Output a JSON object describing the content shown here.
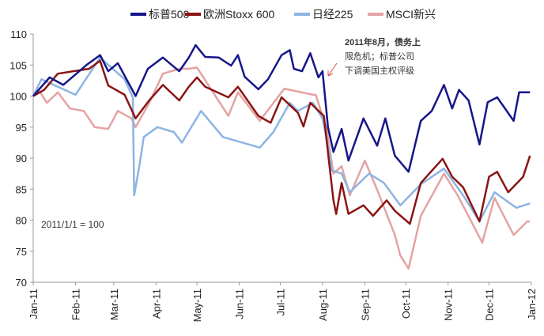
{
  "chart_data": {
    "type": "line",
    "title": "",
    "xlabel": "",
    "ylabel": "",
    "ylim": [
      70,
      110
    ],
    "yticks": [
      70,
      75,
      80,
      85,
      90,
      95,
      100,
      105,
      110
    ],
    "xlim": [
      "2011-01-01",
      "2012-01-01"
    ],
    "xtick_labels": [
      "Jan-11",
      "Feb-11",
      "Mar-11",
      "Apr-11",
      "May-11",
      "Jun-11",
      "Jul-11",
      "Aug-11",
      "Sep-11",
      "Oct-11",
      "Nov-11",
      "Dec-11",
      "Jan-12"
    ],
    "xtick_dates": [
      "2011-01-01",
      "2011-02-01",
      "2011-03-01",
      "2011-04-01",
      "2011-05-01",
      "2011-06-01",
      "2011-07-01",
      "2011-08-01",
      "2011-09-01",
      "2011-10-01",
      "2011-11-01",
      "2011-12-01",
      "2012-01-01"
    ],
    "grid": false,
    "legend_position": "top",
    "base_note": "2011/1/1 = 100",
    "annotation": {
      "lines": [
        "2011年8月，债务上",
        "限危机；标普公司",
        "下调美国主权评级"
      ],
      "arrow_color": "#e05050"
    },
    "series": [
      {
        "name": "标普500",
        "color": "#16168a",
        "points": [
          [
            "2011-01-01",
            100
          ],
          [
            "2011-01-13",
            103
          ],
          [
            "2011-01-23",
            101.8
          ],
          [
            "2011-02-09",
            105
          ],
          [
            "2011-02-19",
            106.6
          ],
          [
            "2011-02-25",
            104
          ],
          [
            "2011-03-04",
            105.3
          ],
          [
            "2011-03-17",
            100
          ],
          [
            "2011-03-26",
            104.4
          ],
          [
            "2011-04-06",
            106.2
          ],
          [
            "2011-04-18",
            104
          ],
          [
            "2011-04-25",
            106.2
          ],
          [
            "2011-04-30",
            108.2
          ],
          [
            "2011-05-07",
            106.3
          ],
          [
            "2011-05-17",
            106.2
          ],
          [
            "2011-05-26",
            104.9
          ],
          [
            "2011-05-31",
            106.6
          ],
          [
            "2011-06-05",
            103.1
          ],
          [
            "2011-06-15",
            101.1
          ],
          [
            "2011-06-22",
            102.7
          ],
          [
            "2011-07-02",
            106.6
          ],
          [
            "2011-07-08",
            107.4
          ],
          [
            "2011-07-11",
            104.4
          ],
          [
            "2011-07-17",
            104
          ],
          [
            "2011-07-23",
            106.9
          ],
          [
            "2011-07-29",
            103
          ],
          [
            "2011-08-01",
            104
          ],
          [
            "2011-08-05",
            95
          ],
          [
            "2011-08-09",
            91
          ],
          [
            "2011-08-15",
            94.7
          ],
          [
            "2011-08-20",
            89.6
          ],
          [
            "2011-08-31",
            96.4
          ],
          [
            "2011-09-10",
            92
          ],
          [
            "2011-09-16",
            96.4
          ],
          [
            "2011-09-23",
            90.4
          ],
          [
            "2011-10-03",
            87.8
          ],
          [
            "2011-10-12",
            96
          ],
          [
            "2011-10-20",
            97.6
          ],
          [
            "2011-10-29",
            101.8
          ],
          [
            "2011-11-04",
            98
          ],
          [
            "2011-11-09",
            101
          ],
          [
            "2011-11-16",
            99.3
          ],
          [
            "2011-11-24",
            92.2
          ],
          [
            "2011-11-30",
            99
          ],
          [
            "2011-12-07",
            99.8
          ],
          [
            "2011-12-19",
            96
          ],
          [
            "2011-12-23",
            100.6
          ],
          [
            "2011-12-31",
            100.6
          ]
        ]
      },
      {
        "name": "欧洲Stoxx 600",
        "color": "#8b1414",
        "points": [
          [
            "2011-01-01",
            100
          ],
          [
            "2011-01-09",
            101
          ],
          [
            "2011-01-19",
            103.6
          ],
          [
            "2011-02-11",
            104.4
          ],
          [
            "2011-02-19",
            105.7
          ],
          [
            "2011-02-25",
            101.7
          ],
          [
            "2011-03-09",
            100.2
          ],
          [
            "2011-03-17",
            96.4
          ],
          [
            "2011-03-27",
            99.3
          ],
          [
            "2011-04-06",
            101.8
          ],
          [
            "2011-04-18",
            99.3
          ],
          [
            "2011-04-25",
            101.5
          ],
          [
            "2011-05-01",
            103
          ],
          [
            "2011-05-07",
            101.5
          ],
          [
            "2011-05-24",
            99.8
          ],
          [
            "2011-05-31",
            101.5
          ],
          [
            "2011-06-15",
            96.8
          ],
          [
            "2011-06-24",
            95.7
          ],
          [
            "2011-07-02",
            99.8
          ],
          [
            "2011-07-14",
            97.3
          ],
          [
            "2011-07-18",
            95.1
          ],
          [
            "2011-07-23",
            98.9
          ],
          [
            "2011-08-02",
            96.8
          ],
          [
            "2011-08-06",
            89
          ],
          [
            "2011-08-09",
            83.2
          ],
          [
            "2011-08-11",
            81
          ],
          [
            "2011-08-15",
            86
          ],
          [
            "2011-08-20",
            81
          ],
          [
            "2011-08-31",
            82.4
          ],
          [
            "2011-09-07",
            80.7
          ],
          [
            "2011-09-17",
            83.2
          ],
          [
            "2011-09-23",
            81.5
          ],
          [
            "2011-10-04",
            79.4
          ],
          [
            "2011-10-12",
            86
          ],
          [
            "2011-10-28",
            89.9
          ],
          [
            "2011-11-04",
            87
          ],
          [
            "2011-11-12",
            85.3
          ],
          [
            "2011-11-24",
            79.8
          ],
          [
            "2011-12-01",
            87
          ],
          [
            "2011-12-07",
            87.8
          ],
          [
            "2011-12-15",
            84.5
          ],
          [
            "2011-12-26",
            87
          ],
          [
            "2011-12-31",
            90.4
          ]
        ]
      },
      {
        "name": "日经225",
        "color": "#8db4e2",
        "points": [
          [
            "2011-01-01",
            100
          ],
          [
            "2011-01-07",
            102.7
          ],
          [
            "2011-02-01",
            100.2
          ],
          [
            "2011-02-19",
            106.2
          ],
          [
            "2011-03-09",
            102.7
          ],
          [
            "2011-03-15",
            99.8
          ],
          [
            "2011-03-16",
            84
          ],
          [
            "2011-03-20",
            89
          ],
          [
            "2011-03-23",
            93.4
          ],
          [
            "2011-04-02",
            95
          ],
          [
            "2011-04-14",
            94.2
          ],
          [
            "2011-04-20",
            92.5
          ],
          [
            "2011-05-04",
            97.6
          ],
          [
            "2011-05-20",
            93.4
          ],
          [
            "2011-06-16",
            91.7
          ],
          [
            "2011-06-26",
            94.2
          ],
          [
            "2011-07-08",
            98.9
          ],
          [
            "2011-07-14",
            97.6
          ],
          [
            "2011-07-25",
            98.9
          ],
          [
            "2011-08-01",
            96.4
          ],
          [
            "2011-08-06",
            90.9
          ],
          [
            "2011-08-08",
            88
          ],
          [
            "2011-08-15",
            87.5
          ],
          [
            "2011-08-21",
            84.5
          ],
          [
            "2011-09-04",
            87.5
          ],
          [
            "2011-09-15",
            86
          ],
          [
            "2011-09-27",
            82.4
          ],
          [
            "2011-10-12",
            85.8
          ],
          [
            "2011-10-29",
            88.3
          ],
          [
            "2011-11-12",
            84
          ],
          [
            "2011-11-24",
            79.8
          ],
          [
            "2011-12-05",
            84.5
          ],
          [
            "2011-12-21",
            82
          ],
          [
            "2011-12-31",
            82.7
          ]
        ]
      },
      {
        "name": "MSCI新兴",
        "color": "#e4a3a3",
        "points": [
          [
            "2011-01-01",
            100
          ],
          [
            "2011-01-05",
            101
          ],
          [
            "2011-01-11",
            98.9
          ],
          [
            "2011-01-19",
            100.6
          ],
          [
            "2011-01-28",
            98
          ],
          [
            "2011-02-07",
            97.6
          ],
          [
            "2011-02-15",
            95
          ],
          [
            "2011-02-25",
            94.7
          ],
          [
            "2011-03-04",
            97.6
          ],
          [
            "2011-03-14",
            96.4
          ],
          [
            "2011-03-17",
            95
          ],
          [
            "2011-03-27",
            98.9
          ],
          [
            "2011-04-06",
            103.6
          ],
          [
            "2011-04-18",
            104.4
          ],
          [
            "2011-04-25",
            104.4
          ],
          [
            "2011-05-01",
            104.6
          ],
          [
            "2011-05-24",
            96.8
          ],
          [
            "2011-05-31",
            100.6
          ],
          [
            "2011-06-16",
            96
          ],
          [
            "2011-07-04",
            101.2
          ],
          [
            "2011-07-25",
            100.2
          ],
          [
            "2011-07-27",
            100.2
          ],
          [
            "2011-08-04",
            94.7
          ],
          [
            "2011-08-09",
            87.5
          ],
          [
            "2011-08-15",
            88.7
          ],
          [
            "2011-08-21",
            84
          ],
          [
            "2011-09-01",
            89.6
          ],
          [
            "2011-09-10",
            84.9
          ],
          [
            "2011-09-23",
            77.6
          ],
          [
            "2011-09-27",
            74.3
          ],
          [
            "2011-10-03",
            72.2
          ],
          [
            "2011-10-12",
            80.7
          ],
          [
            "2011-10-29",
            87.5
          ],
          [
            "2011-11-08",
            84
          ],
          [
            "2011-11-26",
            76.4
          ],
          [
            "2011-12-05",
            83.6
          ],
          [
            "2011-12-19",
            77.6
          ],
          [
            "2011-12-29",
            79.8
          ],
          [
            "2011-12-31",
            79.8
          ]
        ]
      }
    ]
  }
}
